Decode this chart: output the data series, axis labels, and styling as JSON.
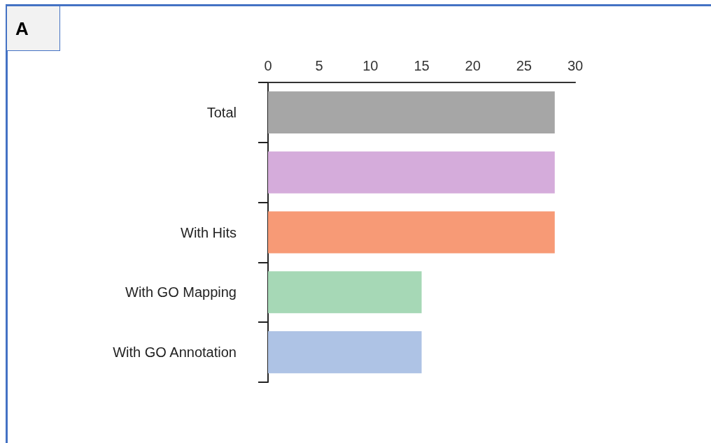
{
  "chart_data": {
    "type": "bar",
    "orientation": "horizontal",
    "categories": [
      "Total",
      null,
      "With Hits",
      "With GO Mapping",
      "With GO Annotation"
    ],
    "values": [
      28,
      28,
      28,
      15,
      15
    ],
    "colors": [
      "#a6a6a6",
      "#d5acdb",
      "#f79a76",
      "#a6d8b6",
      "#aec3e5"
    ],
    "xlim": [
      0,
      30
    ],
    "xticks": [
      0,
      5,
      10,
      15,
      20,
      25,
      30
    ],
    "annotations": [
      "A"
    ],
    "tick_labels": "xy"
  }
}
